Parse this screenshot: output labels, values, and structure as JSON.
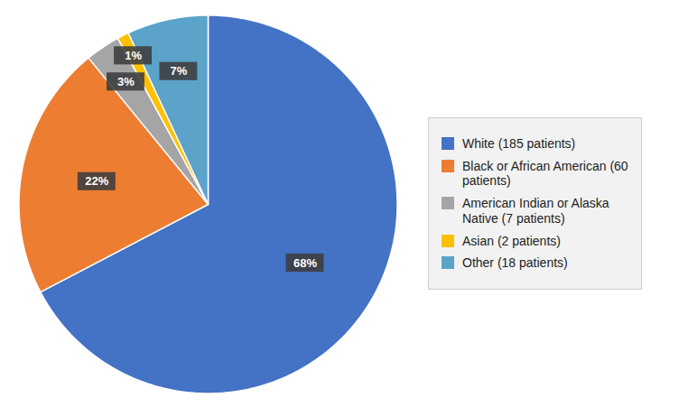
{
  "chart_data": {
    "type": "pie",
    "categories": [
      "White (185 patients)",
      "Black or African American (60\npatients)",
      "American Indian or Alaska\nNative (7 patients)",
      "Asian (2 patients)",
      "Other (18 patients)"
    ],
    "values": [
      68,
      22,
      3,
      1,
      7
    ],
    "value_labels": [
      "68%",
      "22%",
      "3%",
      "1%",
      "7%"
    ],
    "colors": [
      "#4472C4",
      "#ED7D31",
      "#A5A5A5",
      "#FFC000",
      "#5BA3C9"
    ],
    "data_labels": true,
    "legend": "right"
  }
}
